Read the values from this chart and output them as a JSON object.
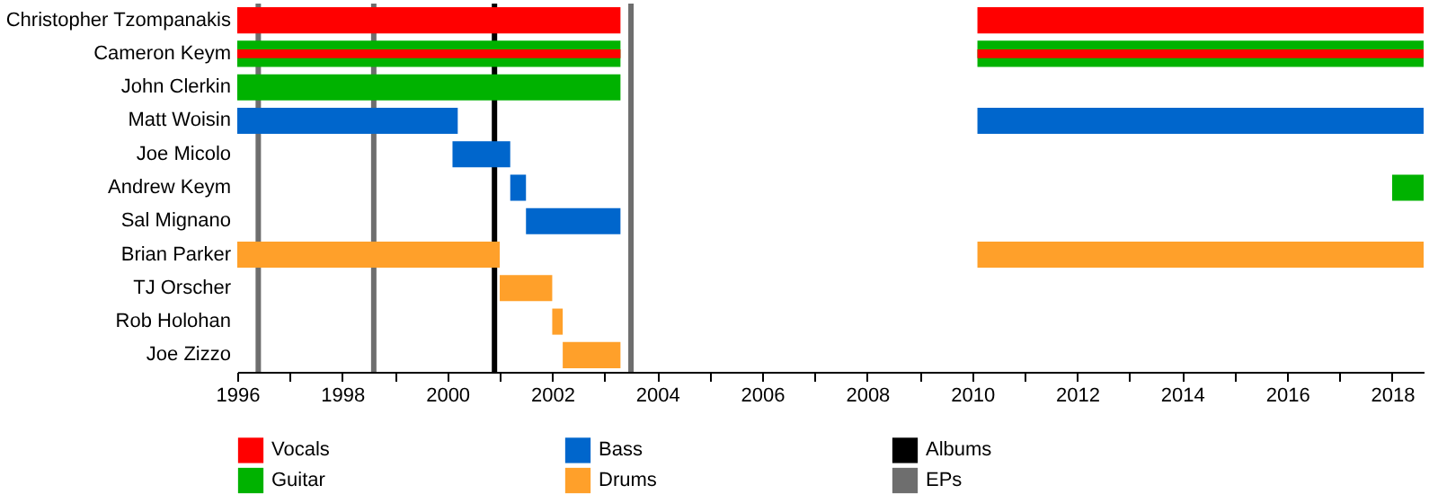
{
  "chart_data": {
    "type": "bar",
    "orientation": "horizontal",
    "categories": [
      "Christopher Tzompanakis",
      "Cameron Keym",
      "John Clerkin",
      "Matt Woisin",
      "Joe Micolo",
      "Andrew Keym",
      "Sal Mignano",
      "Brian Parker",
      "TJ Orscher",
      "Rob Holohan",
      "Joe Zizzo"
    ],
    "series": [
      {
        "name": "Vocals",
        "color": "#ff0000",
        "base": [
          1996,
          1996,
          null,
          null,
          null,
          null,
          null,
          null,
          null,
          null,
          null
        ],
        "values": [
          7.3,
          7.3,
          null,
          null,
          null,
          null,
          null,
          null,
          null,
          null,
          null
        ]
      },
      {
        "color": "#ff0000",
        "base": [
          2010.1,
          2010.1,
          null,
          null,
          null,
          null,
          null,
          null,
          null,
          null,
          null
        ],
        "values": [
          8.5,
          8.5,
          null,
          null,
          null,
          null,
          null,
          null,
          null,
          null,
          null
        ]
      },
      {
        "name": "Guitar",
        "color": "#00b200",
        "base": [
          null,
          1996,
          1996,
          null,
          null,
          2018,
          null,
          null,
          null,
          null,
          null
        ],
        "values": [
          null,
          7.3,
          7.3,
          null,
          null,
          0.6,
          null,
          null,
          null,
          null,
          null
        ]
      },
      {
        "color": "#00b200",
        "base": [
          null,
          2010.1,
          null,
          null,
          null,
          null,
          null,
          null,
          null,
          null,
          null
        ],
        "values": [
          null,
          8.5,
          null,
          null,
          null,
          null,
          null,
          null,
          null,
          null,
          null
        ]
      },
      {
        "name": "Bass",
        "color": "#0066cc",
        "base": [
          null,
          null,
          null,
          1996,
          2000.1,
          2001.2,
          2001.5,
          null,
          null,
          null,
          null
        ],
        "values": [
          null,
          null,
          null,
          4.2,
          1.1,
          0.3,
          1.8,
          null,
          null,
          null,
          null
        ]
      },
      {
        "color": "#0066cc",
        "base": [
          null,
          null,
          null,
          2010.1,
          null,
          null,
          null,
          null,
          null,
          null,
          null
        ],
        "values": [
          null,
          null,
          null,
          8.5,
          null,
          null,
          null,
          null,
          null,
          null,
          null
        ]
      },
      {
        "name": "Drums",
        "color": "#ffa02a",
        "base": [
          null,
          null,
          null,
          null,
          null,
          null,
          null,
          1996,
          2001,
          2002,
          2002.2
        ],
        "values": [
          null,
          null,
          null,
          null,
          null,
          null,
          null,
          5.0,
          1.0,
          0.2,
          1.1
        ]
      },
      {
        "color": "#ffa02a",
        "base": [
          null,
          null,
          null,
          null,
          null,
          null,
          null,
          2010.1,
          null,
          null,
          null
        ],
        "values": [
          null,
          null,
          null,
          null,
          null,
          null,
          null,
          8.5,
          null,
          null,
          null
        ]
      }
    ],
    "ref_lines": [
      {
        "axis": "x",
        "value": 2000.9,
        "label": "Albums",
        "color": "#000000"
      },
      {
        "axis": "x",
        "value": 1996.4,
        "label": "EPs",
        "color": "#6e6e6e"
      },
      {
        "axis": "x",
        "value": 1998.6,
        "color": "#6e6e6e"
      },
      {
        "axis": "x",
        "value": 2003.5,
        "color": "#6e6e6e"
      }
    ],
    "xlim": [
      1996,
      2018.6
    ],
    "xticks": [
      1996,
      {
        "value": 1997,
        "label": null
      },
      1998,
      {
        "value": 1999,
        "label": null
      },
      2000,
      {
        "value": 2001,
        "label": null
      },
      2002,
      {
        "value": 2003,
        "label": null
      },
      2004,
      {
        "value": 2005,
        "label": null
      },
      2006,
      {
        "value": 2007,
        "label": null
      },
      2008,
      {
        "value": 2009,
        "label": null
      },
      2010,
      {
        "value": 2011,
        "label": null
      },
      2012,
      {
        "value": 2013,
        "label": null
      },
      2014,
      {
        "value": 2015,
        "label": null
      },
      2016,
      {
        "value": 2017,
        "label": null
      },
      2018
    ],
    "grid": false,
    "legend": "bottom"
  }
}
